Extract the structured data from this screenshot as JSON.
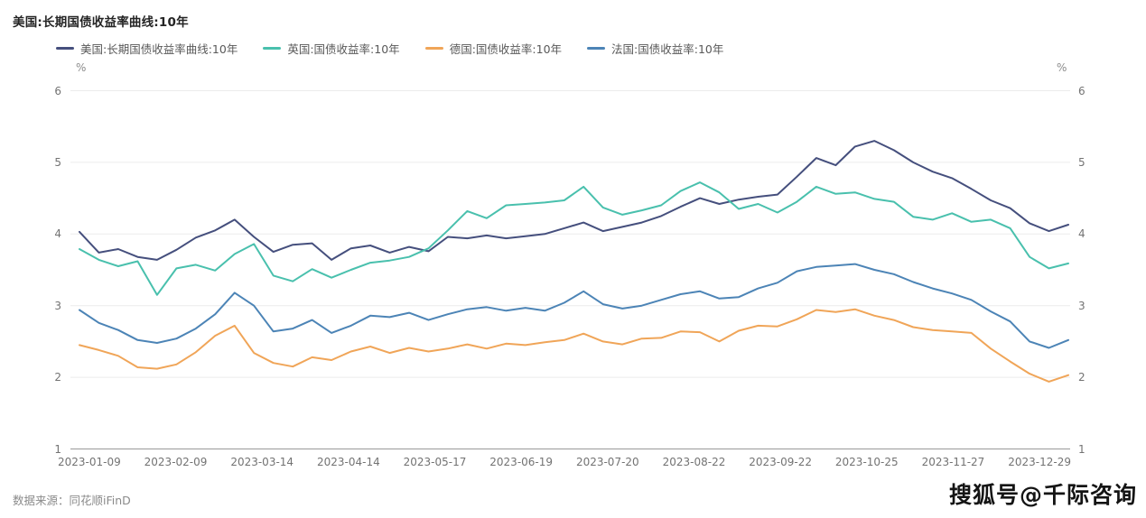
{
  "title": "美国:长期国债收益率曲线:10年",
  "legend": [
    {
      "label": "美国:长期国债收益率曲线:10年"
    },
    {
      "label": "英国:国债收益率:10年"
    },
    {
      "label": "德国:国债收益率:10年"
    },
    {
      "label": "法国:国债收益率:10年"
    }
  ],
  "footer": {
    "source": "数据来源：同花顺iFinD",
    "watermark": "搜狐号@千际咨询"
  },
  "chart_data": {
    "type": "line",
    "title": "美国:长期国债收益率曲线:10年",
    "unit": "%",
    "ylim": [
      1,
      6
    ],
    "y_ticks": [
      1,
      2,
      3,
      4,
      5,
      6
    ],
    "grid": "horizontal",
    "legend_position": "top",
    "x_tick_labels": [
      "2023-01-09",
      "2023-02-09",
      "2023-03-14",
      "2023-04-14",
      "2023-05-17",
      "2023-06-19",
      "2023-07-20",
      "2023-08-22",
      "2023-09-22",
      "2023-10-25",
      "2023-11-27",
      "2023-12-29"
    ],
    "x_note": "weekly samples from 2023-01-09 to 2023-12-29",
    "series": [
      {
        "name": "美国:长期国债收益率曲线:10年",
        "color": "#454F7D",
        "values": [
          4.03,
          3.74,
          3.79,
          3.68,
          3.64,
          3.78,
          3.95,
          4.05,
          4.2,
          3.96,
          3.75,
          3.85,
          3.87,
          3.64,
          3.8,
          3.84,
          3.74,
          3.82,
          3.76,
          3.96,
          3.94,
          3.98,
          3.94,
          3.97,
          4.0,
          4.08,
          4.16,
          4.04,
          4.1,
          4.16,
          4.25,
          4.38,
          4.5,
          4.42,
          4.48,
          4.52,
          4.55,
          4.8,
          5.06,
          4.96,
          5.22,
          5.3,
          5.17,
          5.0,
          4.87,
          4.78,
          4.63,
          4.47,
          4.36,
          4.15,
          4.04,
          4.13
        ]
      },
      {
        "name": "英国:国债收益率:10年",
        "color": "#49C0AD",
        "values": [
          3.79,
          3.64,
          3.55,
          3.62,
          3.15,
          3.52,
          3.57,
          3.49,
          3.72,
          3.86,
          3.42,
          3.34,
          3.51,
          3.39,
          3.5,
          3.6,
          3.63,
          3.68,
          3.8,
          4.05,
          4.32,
          4.22,
          4.4,
          4.42,
          4.44,
          4.47,
          4.66,
          4.37,
          4.27,
          4.33,
          4.4,
          4.6,
          4.72,
          4.58,
          4.35,
          4.42,
          4.3,
          4.45,
          4.66,
          4.56,
          4.58,
          4.49,
          4.45,
          4.24,
          4.2,
          4.29,
          4.17,
          4.2,
          4.08,
          3.68,
          3.52,
          3.59
        ]
      },
      {
        "name": "德国:国债收益率:10年",
        "color": "#F0A558",
        "values": [
          2.45,
          2.38,
          2.3,
          2.14,
          2.12,
          2.18,
          2.35,
          2.58,
          2.72,
          2.34,
          2.2,
          2.15,
          2.28,
          2.24,
          2.36,
          2.43,
          2.34,
          2.41,
          2.36,
          2.4,
          2.46,
          2.4,
          2.47,
          2.45,
          2.49,
          2.52,
          2.61,
          2.5,
          2.46,
          2.54,
          2.55,
          2.64,
          2.63,
          2.5,
          2.65,
          2.72,
          2.71,
          2.81,
          2.94,
          2.91,
          2.95,
          2.86,
          2.8,
          2.7,
          2.66,
          2.64,
          2.62,
          2.4,
          2.22,
          2.05,
          1.94,
          2.03
        ]
      },
      {
        "name": "法国:国债收益率:10年",
        "color": "#4C84B6",
        "values": [
          2.94,
          2.76,
          2.66,
          2.52,
          2.48,
          2.54,
          2.68,
          2.88,
          3.18,
          3.0,
          2.64,
          2.68,
          2.8,
          2.62,
          2.72,
          2.86,
          2.84,
          2.9,
          2.8,
          2.88,
          2.95,
          2.98,
          2.93,
          2.97,
          2.93,
          3.04,
          3.2,
          3.02,
          2.96,
          3.0,
          3.08,
          3.16,
          3.2,
          3.1,
          3.12,
          3.24,
          3.32,
          3.48,
          3.54,
          3.56,
          3.58,
          3.5,
          3.44,
          3.33,
          3.24,
          3.17,
          3.08,
          2.92,
          2.78,
          2.5,
          2.41,
          2.52
        ]
      }
    ]
  }
}
